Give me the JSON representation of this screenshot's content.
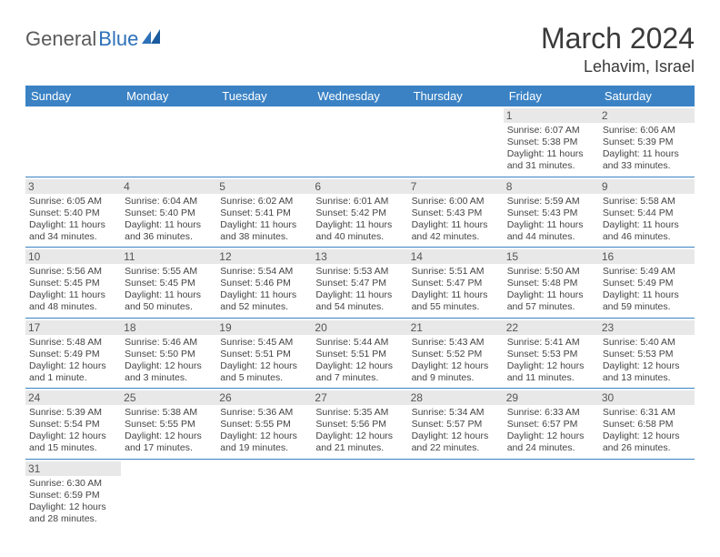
{
  "logo": {
    "text1": "General",
    "text2": "Blue"
  },
  "title": "March 2024",
  "location": "Lehavim, Israel",
  "colors": {
    "header_bg": "#3b82c4",
    "header_text": "#ffffff",
    "daynum_bg": "#e8e8e8",
    "border": "#3b82c4",
    "logo_gray": "#5a5a5a",
    "logo_blue": "#2d71b8"
  },
  "weekdays": [
    "Sunday",
    "Monday",
    "Tuesday",
    "Wednesday",
    "Thursday",
    "Friday",
    "Saturday"
  ],
  "weeks": [
    [
      {
        "n": "",
        "sr": "",
        "ss": "",
        "dl": ""
      },
      {
        "n": "",
        "sr": "",
        "ss": "",
        "dl": ""
      },
      {
        "n": "",
        "sr": "",
        "ss": "",
        "dl": ""
      },
      {
        "n": "",
        "sr": "",
        "ss": "",
        "dl": ""
      },
      {
        "n": "",
        "sr": "",
        "ss": "",
        "dl": ""
      },
      {
        "n": "1",
        "sr": "Sunrise: 6:07 AM",
        "ss": "Sunset: 5:38 PM",
        "dl": "Daylight: 11 hours and 31 minutes."
      },
      {
        "n": "2",
        "sr": "Sunrise: 6:06 AM",
        "ss": "Sunset: 5:39 PM",
        "dl": "Daylight: 11 hours and 33 minutes."
      }
    ],
    [
      {
        "n": "3",
        "sr": "Sunrise: 6:05 AM",
        "ss": "Sunset: 5:40 PM",
        "dl": "Daylight: 11 hours and 34 minutes."
      },
      {
        "n": "4",
        "sr": "Sunrise: 6:04 AM",
        "ss": "Sunset: 5:40 PM",
        "dl": "Daylight: 11 hours and 36 minutes."
      },
      {
        "n": "5",
        "sr": "Sunrise: 6:02 AM",
        "ss": "Sunset: 5:41 PM",
        "dl": "Daylight: 11 hours and 38 minutes."
      },
      {
        "n": "6",
        "sr": "Sunrise: 6:01 AM",
        "ss": "Sunset: 5:42 PM",
        "dl": "Daylight: 11 hours and 40 minutes."
      },
      {
        "n": "7",
        "sr": "Sunrise: 6:00 AM",
        "ss": "Sunset: 5:43 PM",
        "dl": "Daylight: 11 hours and 42 minutes."
      },
      {
        "n": "8",
        "sr": "Sunrise: 5:59 AM",
        "ss": "Sunset: 5:43 PM",
        "dl": "Daylight: 11 hours and 44 minutes."
      },
      {
        "n": "9",
        "sr": "Sunrise: 5:58 AM",
        "ss": "Sunset: 5:44 PM",
        "dl": "Daylight: 11 hours and 46 minutes."
      }
    ],
    [
      {
        "n": "10",
        "sr": "Sunrise: 5:56 AM",
        "ss": "Sunset: 5:45 PM",
        "dl": "Daylight: 11 hours and 48 minutes."
      },
      {
        "n": "11",
        "sr": "Sunrise: 5:55 AM",
        "ss": "Sunset: 5:45 PM",
        "dl": "Daylight: 11 hours and 50 minutes."
      },
      {
        "n": "12",
        "sr": "Sunrise: 5:54 AM",
        "ss": "Sunset: 5:46 PM",
        "dl": "Daylight: 11 hours and 52 minutes."
      },
      {
        "n": "13",
        "sr": "Sunrise: 5:53 AM",
        "ss": "Sunset: 5:47 PM",
        "dl": "Daylight: 11 hours and 54 minutes."
      },
      {
        "n": "14",
        "sr": "Sunrise: 5:51 AM",
        "ss": "Sunset: 5:47 PM",
        "dl": "Daylight: 11 hours and 55 minutes."
      },
      {
        "n": "15",
        "sr": "Sunrise: 5:50 AM",
        "ss": "Sunset: 5:48 PM",
        "dl": "Daylight: 11 hours and 57 minutes."
      },
      {
        "n": "16",
        "sr": "Sunrise: 5:49 AM",
        "ss": "Sunset: 5:49 PM",
        "dl": "Daylight: 11 hours and 59 minutes."
      }
    ],
    [
      {
        "n": "17",
        "sr": "Sunrise: 5:48 AM",
        "ss": "Sunset: 5:49 PM",
        "dl": "Daylight: 12 hours and 1 minute."
      },
      {
        "n": "18",
        "sr": "Sunrise: 5:46 AM",
        "ss": "Sunset: 5:50 PM",
        "dl": "Daylight: 12 hours and 3 minutes."
      },
      {
        "n": "19",
        "sr": "Sunrise: 5:45 AM",
        "ss": "Sunset: 5:51 PM",
        "dl": "Daylight: 12 hours and 5 minutes."
      },
      {
        "n": "20",
        "sr": "Sunrise: 5:44 AM",
        "ss": "Sunset: 5:51 PM",
        "dl": "Daylight: 12 hours and 7 minutes."
      },
      {
        "n": "21",
        "sr": "Sunrise: 5:43 AM",
        "ss": "Sunset: 5:52 PM",
        "dl": "Daylight: 12 hours and 9 minutes."
      },
      {
        "n": "22",
        "sr": "Sunrise: 5:41 AM",
        "ss": "Sunset: 5:53 PM",
        "dl": "Daylight: 12 hours and 11 minutes."
      },
      {
        "n": "23",
        "sr": "Sunrise: 5:40 AM",
        "ss": "Sunset: 5:53 PM",
        "dl": "Daylight: 12 hours and 13 minutes."
      }
    ],
    [
      {
        "n": "24",
        "sr": "Sunrise: 5:39 AM",
        "ss": "Sunset: 5:54 PM",
        "dl": "Daylight: 12 hours and 15 minutes."
      },
      {
        "n": "25",
        "sr": "Sunrise: 5:38 AM",
        "ss": "Sunset: 5:55 PM",
        "dl": "Daylight: 12 hours and 17 minutes."
      },
      {
        "n": "26",
        "sr": "Sunrise: 5:36 AM",
        "ss": "Sunset: 5:55 PM",
        "dl": "Daylight: 12 hours and 19 minutes."
      },
      {
        "n": "27",
        "sr": "Sunrise: 5:35 AM",
        "ss": "Sunset: 5:56 PM",
        "dl": "Daylight: 12 hours and 21 minutes."
      },
      {
        "n": "28",
        "sr": "Sunrise: 5:34 AM",
        "ss": "Sunset: 5:57 PM",
        "dl": "Daylight: 12 hours and 22 minutes."
      },
      {
        "n": "29",
        "sr": "Sunrise: 6:33 AM",
        "ss": "Sunset: 6:57 PM",
        "dl": "Daylight: 12 hours and 24 minutes."
      },
      {
        "n": "30",
        "sr": "Sunrise: 6:31 AM",
        "ss": "Sunset: 6:58 PM",
        "dl": "Daylight: 12 hours and 26 minutes."
      }
    ],
    [
      {
        "n": "31",
        "sr": "Sunrise: 6:30 AM",
        "ss": "Sunset: 6:59 PM",
        "dl": "Daylight: 12 hours and 28 minutes."
      },
      {
        "n": "",
        "sr": "",
        "ss": "",
        "dl": ""
      },
      {
        "n": "",
        "sr": "",
        "ss": "",
        "dl": ""
      },
      {
        "n": "",
        "sr": "",
        "ss": "",
        "dl": ""
      },
      {
        "n": "",
        "sr": "",
        "ss": "",
        "dl": ""
      },
      {
        "n": "",
        "sr": "",
        "ss": "",
        "dl": ""
      },
      {
        "n": "",
        "sr": "",
        "ss": "",
        "dl": ""
      }
    ]
  ]
}
